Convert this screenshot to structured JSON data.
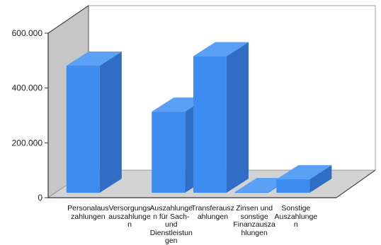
{
  "chart_data": {
    "type": "bar",
    "title": "",
    "xlabel": "",
    "ylabel": "",
    "ylim": [
      0,
      600000
    ],
    "yticks": [
      {
        "value": 0,
        "label": "0"
      },
      {
        "value": 200000,
        "label": "200.000"
      },
      {
        "value": 400000,
        "label": "400.000"
      },
      {
        "value": 600000,
        "label": "600.000"
      }
    ],
    "categories": [
      "Personalauszahlungen",
      "Versorgungsauszahlungen",
      "Auszahlungen für Sach- und Dienstleistungen",
      "Transferauszahlungen",
      "Zinsen und sonstige Finanzauszahlungen",
      "Sonstige Auszahlungen"
    ],
    "values": [
      470000,
      0,
      300000,
      505000,
      2000,
      50000
    ],
    "style": "3d-bar",
    "grid": false,
    "legend": "none",
    "colors": {
      "bar_front": "#3f8cf0",
      "bar_side": "#2f6ec4",
      "bar_top": "#5aa0f5",
      "back_wall": "#ffffff",
      "left_wall": "#c6c6c6",
      "floor": "#d3d3d3",
      "frame": "#555555"
    }
  }
}
